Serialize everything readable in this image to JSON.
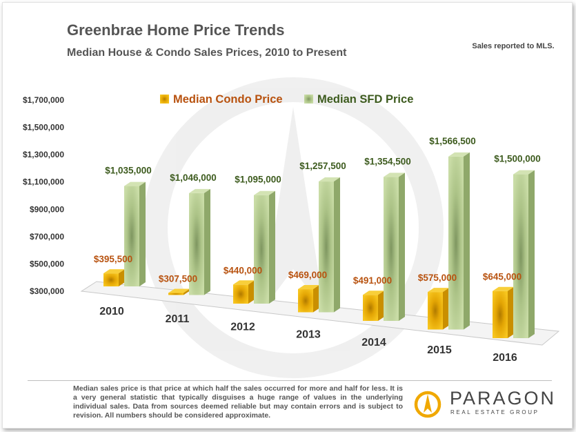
{
  "header": {
    "title": "Greenbrae Home Price Trends",
    "subtitle": "Median House & Condo Sales Prices, 2010 to Present",
    "note": "Sales reported to MLS."
  },
  "footer": {
    "disclaimer": "Median sales price is that price at which half the sales occurred for more and half for less. It is a very general statistic that typically disguises a huge range of values in the underlying individual sales. Data from sources deemed reliable but may contain errors and is subject to revision. All numbers should be considered approximate.",
    "logo_word": "PARAGON",
    "logo_sub": "REAL ESTATE GROUP"
  },
  "colors": {
    "condo": "#f2b705",
    "sfd": "#b4cc88"
  },
  "chart_data": {
    "type": "bar",
    "title": "Greenbrae Home Price Trends",
    "subtitle": "Median House & Condo Sales Prices, 2010 to Present",
    "categories": [
      "2010",
      "2011",
      "2012",
      "2013",
      "2014",
      "2015",
      "2016"
    ],
    "series": [
      {
        "name": "Median Condo Price",
        "values": [
          395500,
          307500,
          440000,
          469000,
          491000,
          575000,
          645000
        ],
        "labels": [
          "$395,500",
          "$307,500",
          "$440,000",
          "$469,000",
          "$491,000",
          "$575,000",
          "$645,000"
        ]
      },
      {
        "name": "Median SFD Price",
        "values": [
          1035000,
          1046000,
          1095000,
          1257500,
          1354500,
          1566500,
          1500000
        ],
        "labels": [
          "$1,035,000",
          "$1,046,000",
          "$1,095,000",
          "$1,257,500",
          "$1,354,500",
          "$1,566,500",
          "$1,500,000"
        ]
      }
    ],
    "ylim": [
      300000,
      1700000
    ],
    "yticks": [
      300000,
      500000,
      700000,
      900000,
      1100000,
      1300000,
      1500000,
      1700000
    ],
    "ytick_labels": [
      "$300,000",
      "$500,000",
      "$700,000",
      "$900,000",
      "$1,100,000",
      "$1,300,000",
      "$1,500,000",
      "$1,700,000"
    ],
    "legend_position": "top",
    "grid": false,
    "style": "3d-columns"
  }
}
